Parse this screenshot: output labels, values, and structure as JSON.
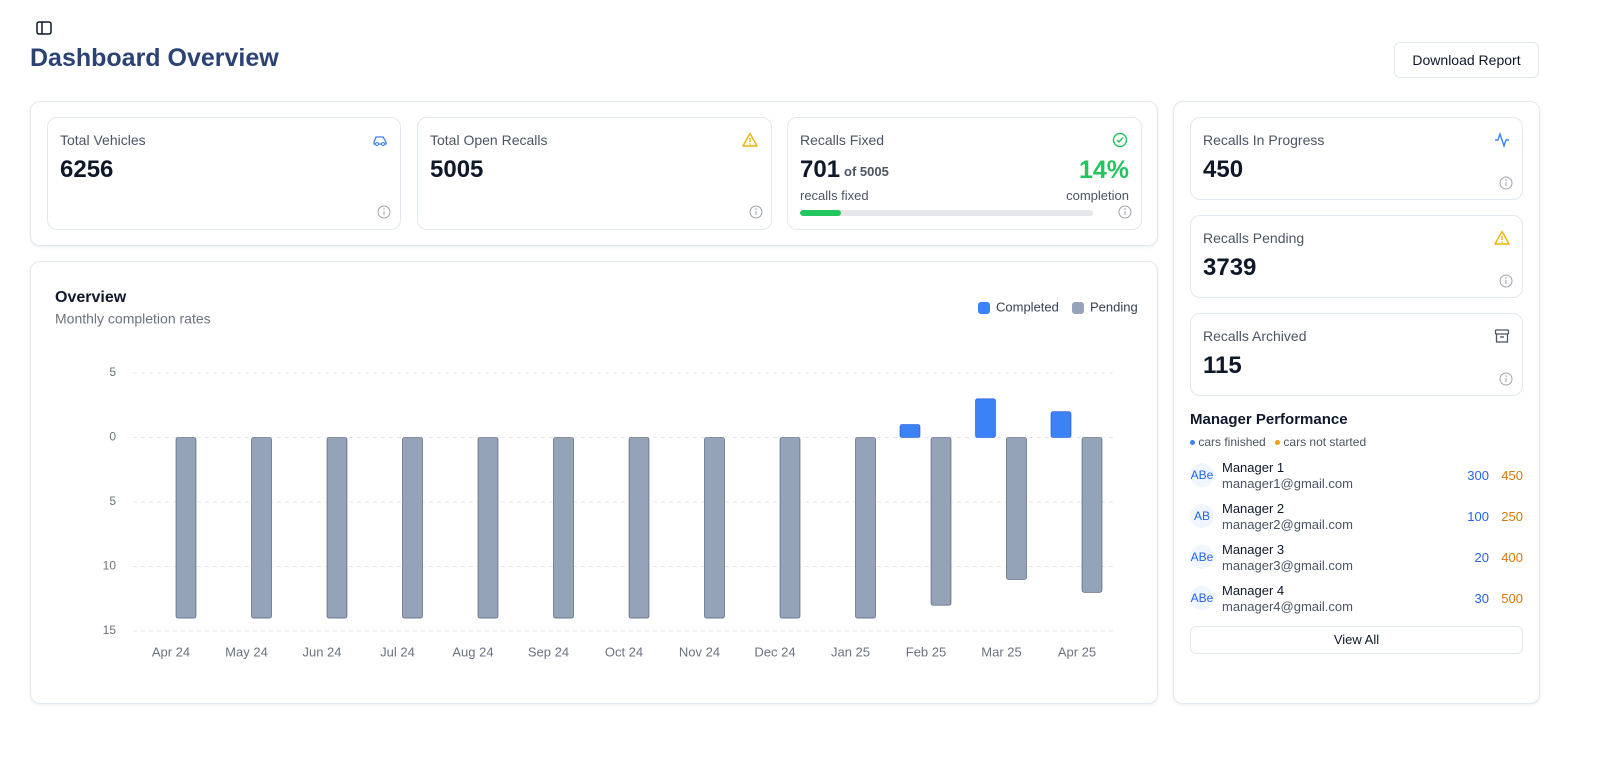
{
  "header": {
    "title": "Dashboard Overview",
    "download_button": "Download Report"
  },
  "stats": [
    {
      "label": "Total Vehicles",
      "value": 6256
    },
    {
      "label": "Total Open Recalls",
      "value": 5005
    }
  ],
  "recalls_fixed": {
    "label": "Recalls Fixed",
    "value": 701,
    "of_label": "of 5005",
    "sub_label": "recalls fixed",
    "percent": {
      "value": 14,
      "label": "14%"
    },
    "completion_label": "completion"
  },
  "side_stats": [
    {
      "label": "Recalls In Progress",
      "value": 450
    },
    {
      "label": "Recalls Pending",
      "value": 3739
    },
    {
      "label": "Recalls Archived",
      "value": 115
    }
  ],
  "manager_performance": {
    "title": "Manager Performance",
    "legend": [
      "cars finished",
      "cars not started"
    ],
    "managers": [
      {
        "initials": "ABe",
        "name": "Manager 1",
        "email": "manager1@gmail.com",
        "finished": 300,
        "not_started": 450
      },
      {
        "initials": "AB",
        "name": "Manager 2",
        "email": "manager2@gmail.com",
        "finished": 100,
        "not_started": 250
      },
      {
        "initials": "ABe",
        "name": "Manager 3",
        "email": "manager3@gmail.com",
        "finished": 20,
        "not_started": 400
      },
      {
        "initials": "ABe",
        "name": "Manager 4",
        "email": "manager4@gmail.com",
        "finished": 30,
        "not_started": 500
      }
    ],
    "view_all": "View All"
  },
  "chart_data": {
    "type": "bar",
    "title": "Overview",
    "subtitle": "Monthly completion rates",
    "categories": [
      "Apr 24",
      "May 24",
      "Jun 24",
      "Jul 24",
      "Aug 24",
      "Sep 24",
      "Oct 24",
      "Nov 24",
      "Dec 24",
      "Jan 25",
      "Feb 25",
      "Mar 25",
      "Apr 25"
    ],
    "series": [
      {
        "name": "Completed",
        "color": "#3b82f6",
        "values": [
          0,
          0,
          0,
          0,
          0,
          0,
          0,
          0,
          0,
          0,
          1,
          3,
          2
        ]
      },
      {
        "name": "Pending",
        "color": "#94a3b8",
        "values": [
          -14,
          -14,
          -14,
          -14,
          -14,
          -14,
          -14,
          -14,
          -14,
          -14,
          -13,
          -11,
          -12
        ]
      }
    ],
    "ylim": [
      -15,
      5
    ],
    "yticks": [
      5,
      0,
      {
        "value": -5,
        "label": "5"
      },
      {
        "value": -10,
        "label": "10"
      },
      {
        "value": -15,
        "label": "15"
      }
    ],
    "grid": true
  }
}
